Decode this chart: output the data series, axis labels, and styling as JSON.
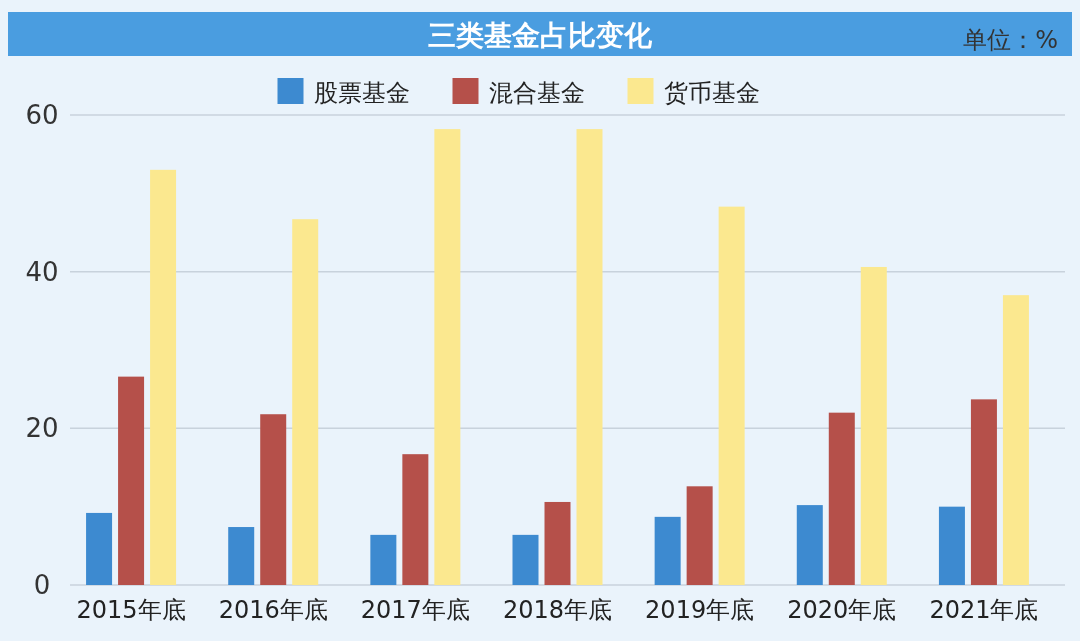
{
  "chart_data": {
    "type": "bar",
    "title": "三类基金占比变化",
    "subtitle": "单位：%",
    "categories": [
      "2015年底",
      "2016年底",
      "2017年底",
      "2018年底",
      "2019年底",
      "2020年底",
      "2021年底"
    ],
    "series": [
      {
        "name": "股票基金",
        "color": "#3d8ad0",
        "values": [
          9.2,
          7.4,
          6.4,
          6.4,
          8.7,
          10.2,
          10.0
        ]
      },
      {
        "name": "混合基金",
        "color": "#b5504a",
        "values": [
          26.6,
          21.8,
          16.7,
          10.6,
          12.6,
          22.0,
          23.7
        ]
      },
      {
        "name": "货币基金",
        "color": "#fbe88f",
        "values": [
          53.0,
          46.7,
          58.2,
          58.2,
          48.3,
          40.6,
          37.0
        ]
      }
    ],
    "ylim": [
      0,
      60
    ],
    "yticks": [
      0,
      20,
      40,
      60
    ],
    "grid": "y",
    "legend": "top"
  }
}
